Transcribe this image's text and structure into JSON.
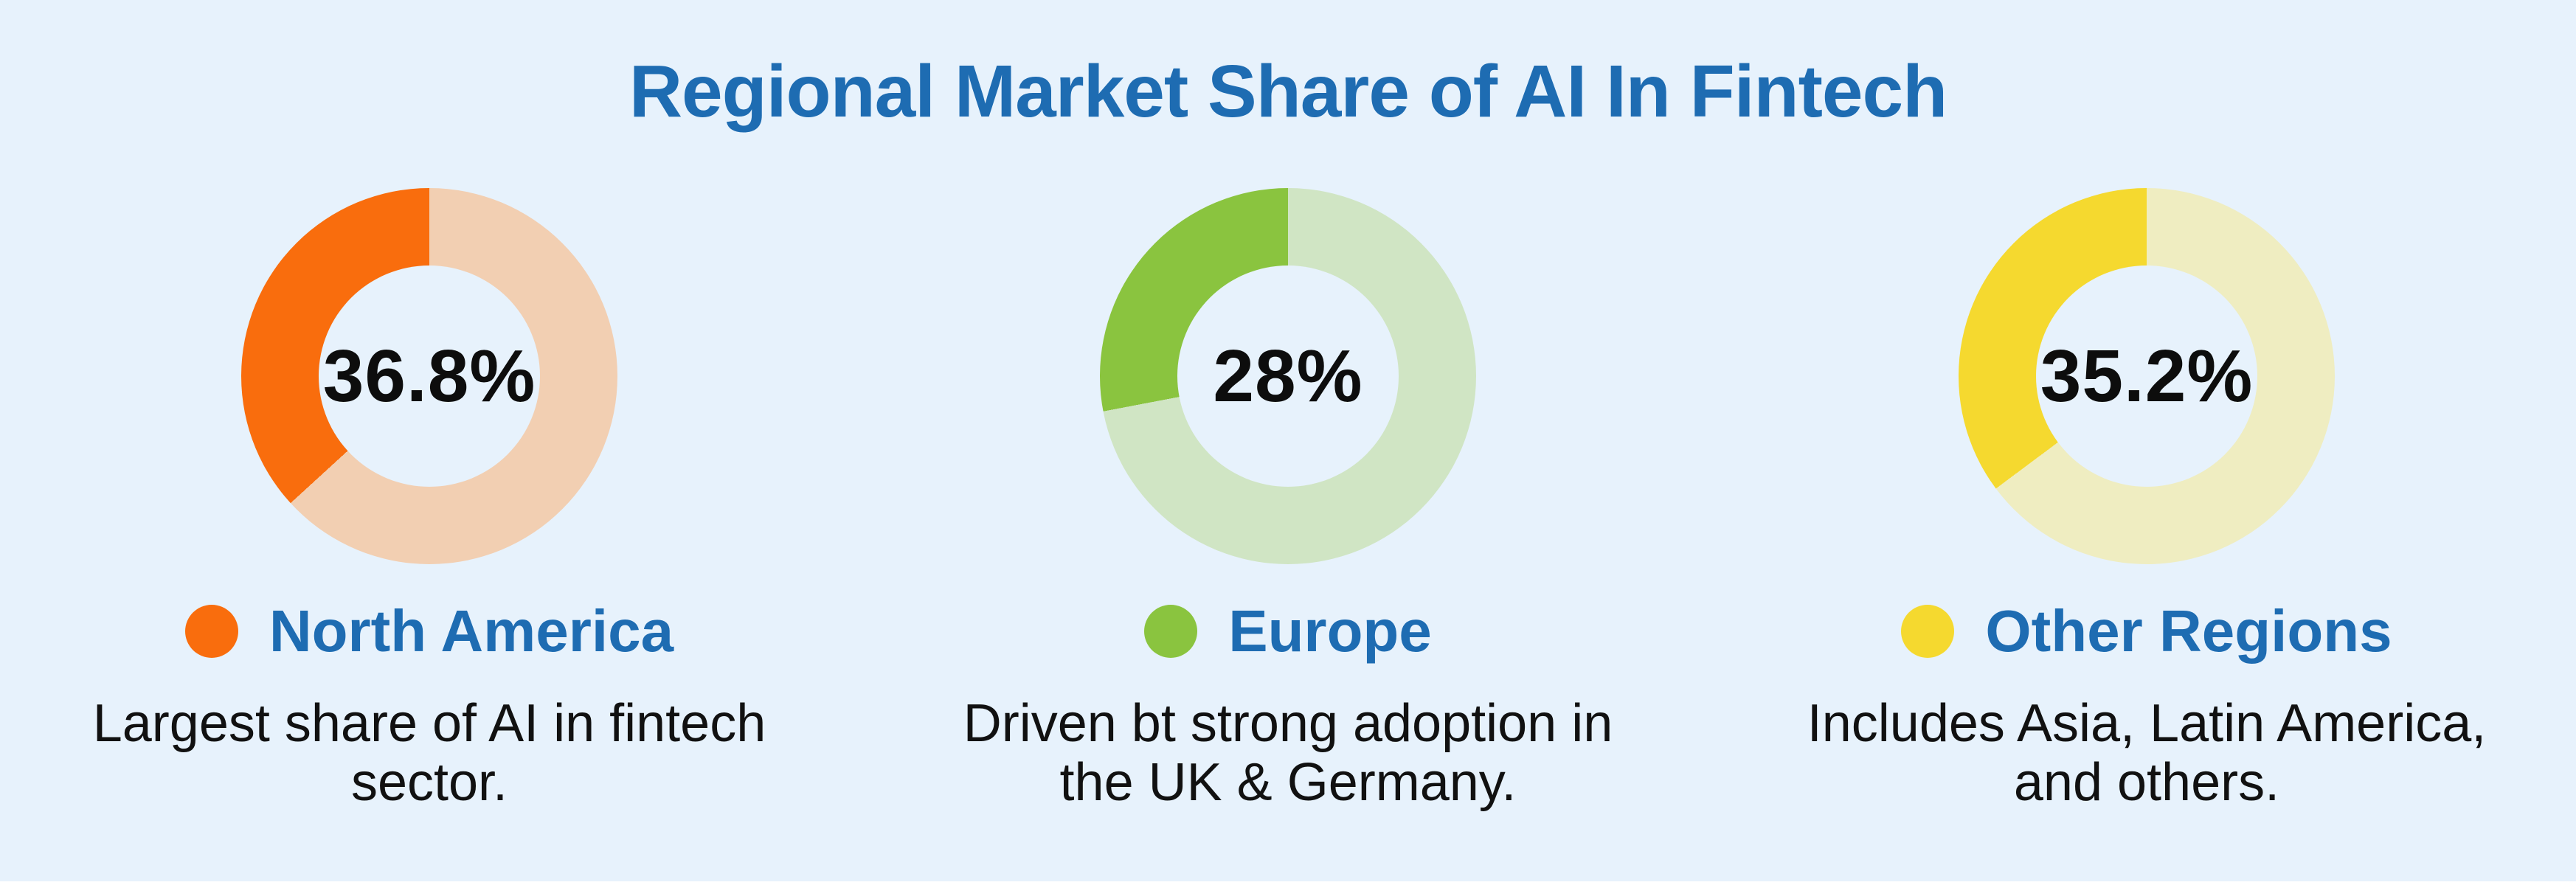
{
  "title": "Regional Market Share of AI In Fintech",
  "palette": {
    "background": "#E7F2FC",
    "title_blue": "#1E6CB2",
    "text_black": "#111111",
    "bottom_strip_white": "#FFFFFF"
  },
  "charts": [
    {
      "region_id": "north-america",
      "value": 36.8,
      "value_label": "36.8%",
      "slice_color": "#F96D0D",
      "track_color": "#F2CFB2",
      "legend_label": "North America",
      "desc_lines": [
        "Largest share of AI in fintech",
        "sector."
      ]
    },
    {
      "region_id": "europe",
      "value": 28,
      "value_label": "28%",
      "slice_color": "#8AC43F",
      "track_color": "#D0E5C4",
      "legend_label": "Europe",
      "desc_lines": [
        "Driven bt strong adoption in",
        "the UK & Germany."
      ]
    },
    {
      "region_id": "other-regions",
      "value": 35.2,
      "value_label": "35.2%",
      "slice_color": "#F5D92F",
      "track_color": "#EFEDC1",
      "legend_label": "Other Regions",
      "desc_lines": [
        "Includes Asia, Latin America,",
        "and others."
      ]
    }
  ],
  "chart_data": {
    "type": "pie",
    "subtype": "donut-trio",
    "title": "Regional Market Share of AI In Fintech",
    "legend_position": "below-chart",
    "fill_direction": "counterclockwise-from-top",
    "charts": [
      {
        "label": "North America",
        "value_pct": 36.8,
        "remainder_pct": 63.2,
        "slice_color": "#F96D0D",
        "track_color": "#F2CFB2",
        "annotation": "Largest share of AI in fintech sector."
      },
      {
        "label": "Europe",
        "value_pct": 28,
        "remainder_pct": 72,
        "slice_color": "#8AC43F",
        "track_color": "#D0E5C4",
        "annotation": "Driven bt strong adoption in the UK & Germany."
      },
      {
        "label": "Other Regions",
        "value_pct": 35.2,
        "remainder_pct": 64.8,
        "slice_color": "#F5D92F",
        "track_color": "#EFEDC1",
        "annotation": "Includes Asia, Latin America, and others."
      }
    ]
  }
}
